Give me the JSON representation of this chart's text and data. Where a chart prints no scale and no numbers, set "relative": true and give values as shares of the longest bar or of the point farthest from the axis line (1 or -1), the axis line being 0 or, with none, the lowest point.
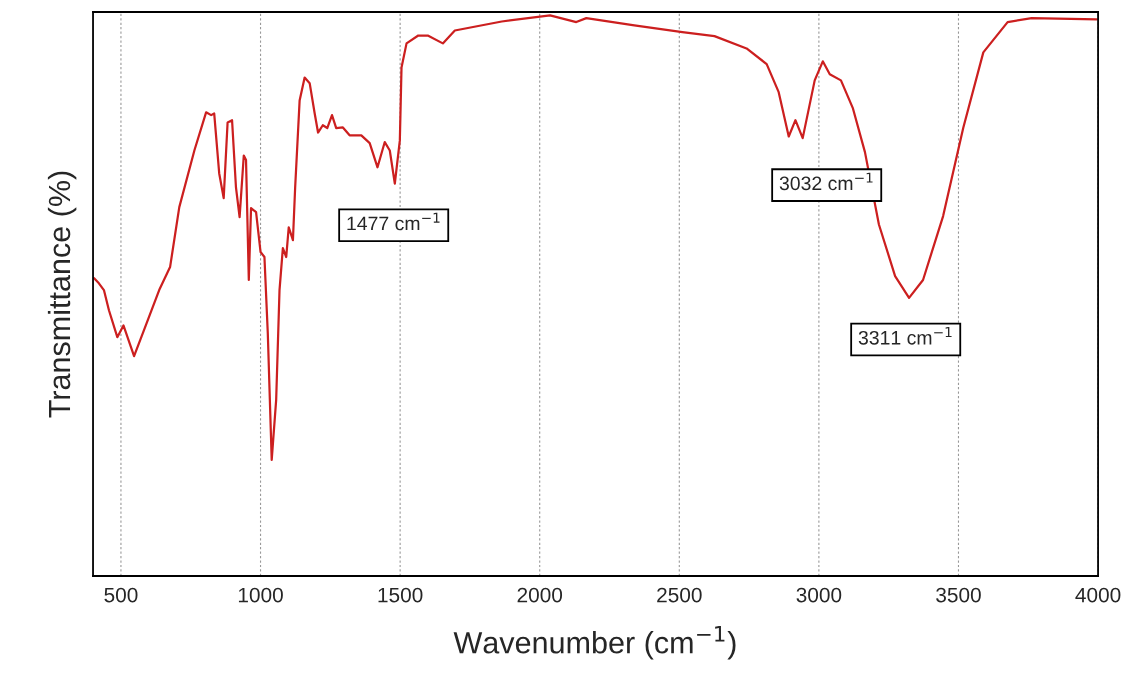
{
  "chart_data": {
    "type": "line",
    "relative": true,
    "xlabel": "Wavenumber (cm$^{−1}$)",
    "ylabel": "Transmittance (%)",
    "xlim": [
      400,
      4000
    ],
    "xticks": [
      500,
      1000,
      1500,
      2000,
      2500,
      3000,
      3500,
      4000
    ],
    "grid": "x",
    "marker": "none",
    "line_style": "solid",
    "series": [
      {
        "color": "#cc1f1f",
        "x": [
          404,
          421,
          439,
          457,
          487,
          509,
          547,
          589,
          637,
          676,
          709,
          763,
          805,
          823,
          834,
          852,
          868,
          882,
          898,
          912,
          925,
          940,
          948,
          958,
          966,
          984,
          1000,
          1014,
          1026,
          1040,
          1056,
          1068,
          1080,
          1092,
          1101,
          1116,
          1124,
          1140,
          1158,
          1176,
          1194,
          1206,
          1223,
          1239,
          1256,
          1271,
          1295,
          1319,
          1361,
          1391,
          1419,
          1445,
          1463,
          1481,
          1499,
          1505,
          1523,
          1565,
          1599,
          1653,
          1696,
          1864,
          2037,
          2131,
          2167,
          2339,
          2511,
          2626,
          2741,
          2813,
          2856,
          2892,
          2916,
          2942,
          2985,
          3014,
          3039,
          3079,
          3122,
          3165,
          3215,
          3273,
          3323,
          3373,
          3445,
          3517,
          3589,
          3676,
          3762,
          3995
        ],
        "values": [
          0.531,
          0.522,
          0.51,
          0.474,
          0.426,
          0.447,
          0.392,
          0.447,
          0.51,
          0.551,
          0.658,
          0.759,
          0.827,
          0.822,
          0.825,
          0.718,
          0.674,
          0.809,
          0.813,
          0.693,
          0.64,
          0.75,
          0.742,
          0.528,
          0.656,
          0.649,
          0.578,
          0.569,
          0.433,
          0.207,
          0.314,
          0.51,
          0.585,
          0.569,
          0.622,
          0.599,
          0.693,
          0.848,
          0.889,
          0.879,
          0.825,
          0.791,
          0.804,
          0.799,
          0.822,
          0.799,
          0.8,
          0.786,
          0.786,
          0.772,
          0.729,
          0.774,
          0.759,
          0.7,
          0.777,
          0.907,
          0.95,
          0.964,
          0.964,
          0.95,
          0.973,
          0.989,
          1.0,
          0.988,
          0.995,
          0.982,
          0.97,
          0.963,
          0.941,
          0.913,
          0.863,
          0.784,
          0.813,
          0.781,
          0.884,
          0.918,
          0.895,
          0.884,
          0.834,
          0.756,
          0.627,
          0.535,
          0.496,
          0.528,
          0.642,
          0.799,
          0.934,
          0.988,
          0.995,
          0.993
        ]
      }
    ],
    "annotations": [
      {
        "text": "1477 cm$^{−1}$",
        "x": 1477,
        "y": 0.7
      },
      "3032 cm$^{−1}$",
      {
        "text": "3311 cm$^{−1}$",
        "x": 3311,
        "y": 0.496
      }
    ]
  }
}
